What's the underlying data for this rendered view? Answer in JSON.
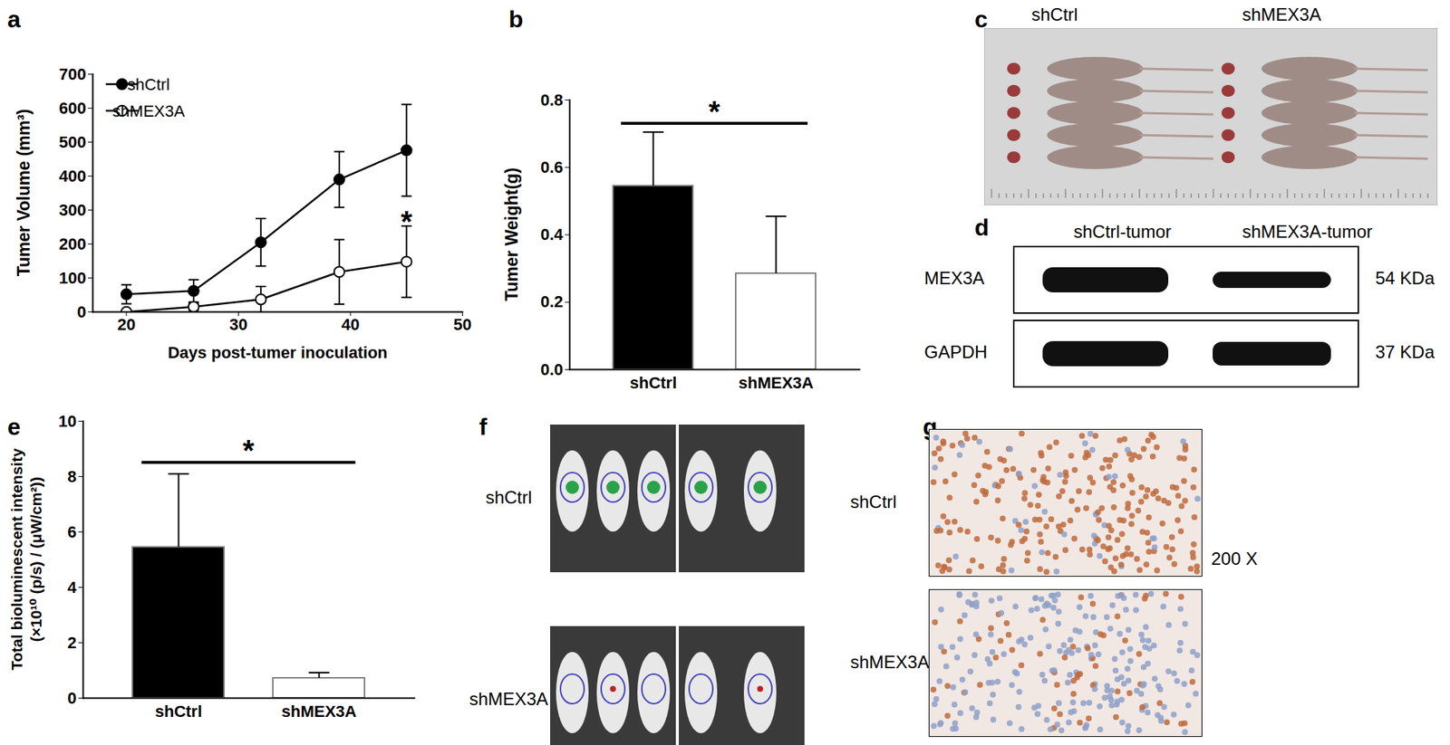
{
  "chart_data": [
    {
      "panel": "a",
      "type": "line",
      "x_label": "Days post-tumer inoculation",
      "y_label": "Tumer Volume (mm³)",
      "x": [
        20,
        26,
        32,
        39,
        45
      ],
      "series": [
        {
          "name": "shCtrl",
          "color": "#000000",
          "marker": "circle",
          "values": [
            52,
            62,
            205,
            390,
            476
          ],
          "errors": [
            28,
            33,
            70,
            82,
            135
          ]
        },
        {
          "name": "shMEX3A",
          "color": "#000000",
          "marker": "open_circle",
          "values": [
            0,
            15,
            37,
            118,
            148
          ],
          "errors": [
            2,
            10,
            38,
            95,
            105
          ]
        }
      ],
      "xlim": [
        17,
        50
      ],
      "xticks": [
        20,
        30,
        40,
        50
      ],
      "ylim": [
        0,
        700
      ],
      "yticks": [
        0,
        100,
        200,
        300,
        400,
        500,
        600,
        700
      ],
      "legend": "top-left",
      "annotations": [
        {
          "text": "*",
          "x": 45,
          "y": 285
        }
      ]
    },
    {
      "panel": "b",
      "type": "bar",
      "y_label": "Tumer Weight(g)",
      "categories": [
        "shCtrl",
        "shMEX3A"
      ],
      "values": [
        0.545,
        0.285
      ],
      "errors": [
        0.16,
        0.17
      ],
      "colors": [
        "#000000",
        "#ffffff"
      ],
      "ylim": [
        0,
        0.8
      ],
      "yticks": [
        {
          "value": 0,
          "label": "0.0"
        },
        0.2,
        0.4,
        0.6,
        0.8
      ],
      "annotations": [
        {
          "text": "*",
          "from": "shCtrl",
          "to": "shMEX3A",
          "y": 0.73
        }
      ]
    },
    {
      "panel": "e",
      "type": "bar",
      "y_label": [
        "Total bioluminescent intensity",
        "(×10¹⁰ (p/s) / (μW/cm²))"
      ],
      "categories": [
        "shCtrl",
        "shMEX3A"
      ],
      "values": [
        5.45,
        0.72
      ],
      "errors": [
        2.65,
        0.2
      ],
      "colors": [
        "#000000",
        "#ffffff"
      ],
      "ylim": [
        0,
        10
      ],
      "yticks": [
        0,
        2,
        4,
        6,
        8,
        10
      ],
      "annotations": [
        {
          "text": "*",
          "from": "shCtrl",
          "to": "shMEX3A",
          "y": 8.5
        }
      ]
    }
  ],
  "images": [
    {
      "panel": "c",
      "columns": [
        "shCtrl",
        "shMEX3A"
      ]
    },
    {
      "panel": "d",
      "columns": [
        "shCtrl-tumor",
        "shMEX3A-tumor"
      ],
      "rows": [
        {
          "label": "MEX3A",
          "size": "54 KDa"
        },
        {
          "label": "GAPDH",
          "size": "37 KDa"
        }
      ]
    },
    {
      "panel": "f",
      "rows": [
        "shCtrl",
        "shMEX3A"
      ]
    },
    {
      "panel": "g",
      "rows": [
        "shCtrl",
        "shMEX3A"
      ],
      "magnification": "200 X"
    }
  ]
}
